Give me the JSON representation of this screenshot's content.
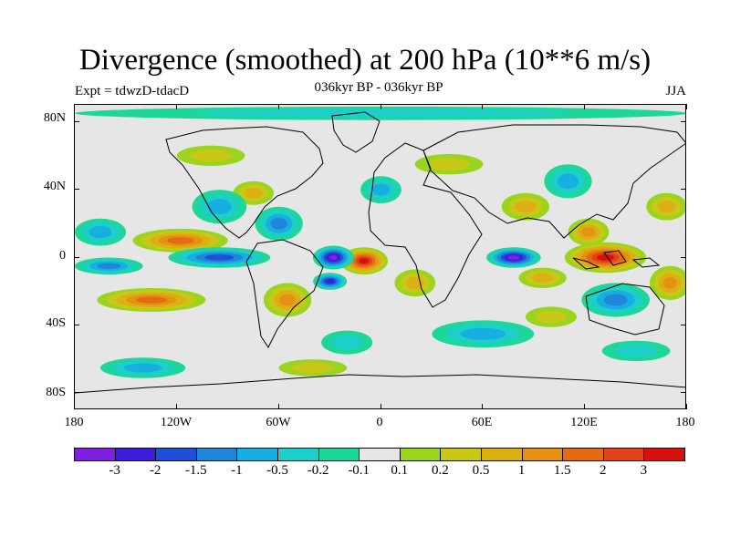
{
  "title": "Divergence (smoothed) at 200 hPa (10**6 m/s)",
  "left_string": "Expt = tdwzD-tdacD",
  "center_string": "036kyr BP - 036kyr BP",
  "right_string": "JJA",
  "lat_labels": [
    "80N",
    "40N",
    "0",
    "40S",
    "80S"
  ],
  "lon_labels": [
    "180",
    "120W",
    "60W",
    "0",
    "60E",
    "120E",
    "180"
  ],
  "legend": {
    "colors": [
      "#7f1fe0",
      "#3c1ed8",
      "#1f4fd6",
      "#1f86d8",
      "#17aee0",
      "#1ccfc9",
      "#1dd69a",
      "#e6e6e6",
      "#9ad41c",
      "#c8c819",
      "#dcb012",
      "#e59214",
      "#e56a14",
      "#e0431a",
      "#d60f0f"
    ],
    "labels": [
      "-3",
      "-2",
      "-1.5",
      "-1",
      "-0.5",
      "-0.2",
      "-0.1",
      "0.1",
      "0.2",
      "0.5",
      "1",
      "1.5",
      "2",
      "3"
    ]
  },
  "chart_data": {
    "type": "heatmap",
    "title": "Divergence (smoothed) at 200 hPa (10**6 m/s)",
    "variable": "Divergence (smoothed)",
    "level": "200 hPa",
    "units": "10**6 m/s",
    "season": "JJA",
    "experiment": "tdwzD-tdacD",
    "period": "036kyr BP - 036kyr BP",
    "x_range_lon": [
      -180,
      180
    ],
    "y_range_lat": [
      -90,
      90
    ],
    "contour_levels": [
      -3,
      -2,
      -1.5,
      -1,
      -0.5,
      -0.2,
      -0.1,
      0.1,
      0.2,
      0.5,
      1,
      1.5,
      2,
      3
    ],
    "features": [
      {
        "lon": -10,
        "lat": -2,
        "value": 3,
        "rx_deg": 14,
        "ry_deg": 8
      },
      {
        "lon": 132,
        "lat": 0,
        "value": 3,
        "rx_deg": 24,
        "ry_deg": 9
      },
      {
        "lon": -118,
        "lat": 10,
        "value": 1.5,
        "rx_deg": 28,
        "ry_deg": 7
      },
      {
        "lon": 122,
        "lat": 15,
        "value": 1,
        "rx_deg": 12,
        "ry_deg": 8
      },
      {
        "lon": -135,
        "lat": -25,
        "value": 1.5,
        "rx_deg": 32,
        "ry_deg": 7
      },
      {
        "lon": -55,
        "lat": -25,
        "value": 1,
        "rx_deg": 14,
        "ry_deg": 10
      },
      {
        "lon": 20,
        "lat": -15,
        "value": 0.5,
        "rx_deg": 12,
        "ry_deg": 8
      },
      {
        "lon": 95,
        "lat": -12,
        "value": 0.5,
        "rx_deg": 14,
        "ry_deg": 6
      },
      {
        "lon": 170,
        "lat": -15,
        "value": 1,
        "rx_deg": 12,
        "ry_deg": 10
      },
      {
        "lon": 85,
        "lat": 30,
        "value": 0.5,
        "rx_deg": 14,
        "ry_deg": 8
      },
      {
        "lon": 168,
        "lat": 30,
        "value": 0.5,
        "rx_deg": 12,
        "ry_deg": 8
      },
      {
        "lon": -75,
        "lat": 38,
        "value": 0.5,
        "rx_deg": 12,
        "ry_deg": 7
      },
      {
        "lon": -28,
        "lat": 0,
        "value": -3,
        "rx_deg": 12,
        "ry_deg": 7
      },
      {
        "lon": -30,
        "lat": -14,
        "value": -2,
        "rx_deg": 10,
        "ry_deg": 5
      },
      {
        "lon": 78,
        "lat": 0,
        "value": -3,
        "rx_deg": 16,
        "ry_deg": 6
      },
      {
        "lon": -95,
        "lat": 0,
        "value": -1.5,
        "rx_deg": 30,
        "ry_deg": 6
      },
      {
        "lon": -160,
        "lat": -5,
        "value": -1,
        "rx_deg": 20,
        "ry_deg": 5
      },
      {
        "lon": 138,
        "lat": -25,
        "value": -1,
        "rx_deg": 20,
        "ry_deg": 10
      },
      {
        "lon": -60,
        "lat": 20,
        "value": -1,
        "rx_deg": 14,
        "ry_deg": 10
      },
      {
        "lon": 0,
        "lat": 40,
        "value": -0.5,
        "rx_deg": 12,
        "ry_deg": 8
      },
      {
        "lon": 110,
        "lat": 45,
        "value": -0.5,
        "rx_deg": 14,
        "ry_deg": 10
      },
      {
        "lon": -95,
        "lat": 30,
        "value": -0.5,
        "rx_deg": 16,
        "ry_deg": 10
      },
      {
        "lon": 60,
        "lat": -45,
        "value": -0.5,
        "rx_deg": 30,
        "ry_deg": 8
      },
      {
        "lon": -140,
        "lat": -65,
        "value": -0.5,
        "rx_deg": 25,
        "ry_deg": 6
      },
      {
        "lon": -165,
        "lat": 15,
        "value": -0.5,
        "rx_deg": 15,
        "ry_deg": 8
      },
      {
        "lon": 0,
        "lat": 85,
        "value": -0.2,
        "rx_deg": 180,
        "ry_deg": 4
      },
      {
        "lon": -20,
        "lat": -50,
        "value": -0.2,
        "rx_deg": 15,
        "ry_deg": 7
      },
      {
        "lon": 150,
        "lat": -55,
        "value": -0.2,
        "rx_deg": 20,
        "ry_deg": 6
      },
      {
        "lon": 40,
        "lat": 55,
        "value": 0.2,
        "rx_deg": 20,
        "ry_deg": 6
      },
      {
        "lon": -100,
        "lat": 60,
        "value": 0.2,
        "rx_deg": 20,
        "ry_deg": 6
      },
      {
        "lon": 100,
        "lat": -35,
        "value": 0.2,
        "rx_deg": 15,
        "ry_deg": 6
      },
      {
        "lon": -40,
        "lat": -65,
        "value": 0.2,
        "rx_deg": 20,
        "ry_deg": 5
      }
    ]
  }
}
